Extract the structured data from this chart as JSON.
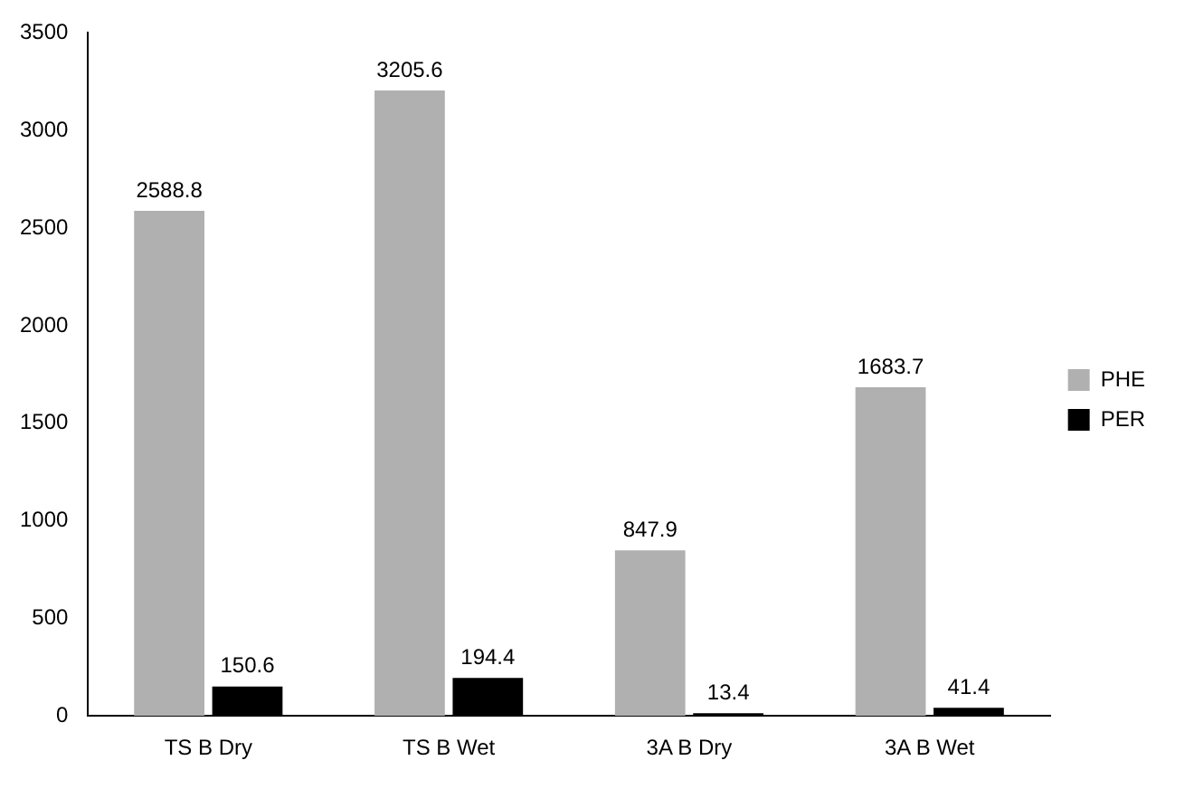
{
  "chart_data": {
    "type": "bar",
    "categories": [
      "TS B Dry",
      "TS B Wet",
      "3A B Dry",
      "3A B Wet"
    ],
    "series": [
      {
        "name": "PHE",
        "color": "#b0b0b0",
        "values": [
          2588.8,
          3205.6,
          847.9,
          1683.7
        ]
      },
      {
        "name": "PER",
        "color": "#000000",
        "values": [
          150.6,
          194.4,
          13.4,
          41.4
        ]
      }
    ],
    "ylim": [
      0,
      3500
    ],
    "yticks": [
      0,
      500,
      1000,
      1500,
      2000,
      2500,
      3000,
      3500
    ],
    "grid": false,
    "legend": "right",
    "data_labels": true
  }
}
